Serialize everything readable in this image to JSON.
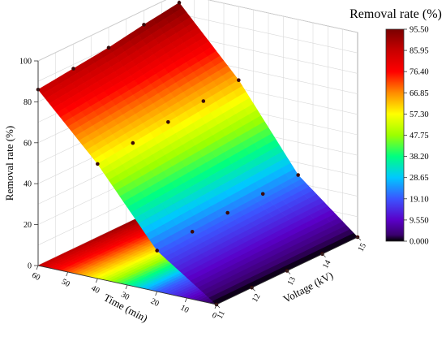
{
  "chart_data": {
    "type": "surface3d",
    "title": "",
    "x_axis": {
      "label": "Voltage (kV)",
      "ticks": [
        "11",
        "12",
        "13",
        "14",
        "15"
      ],
      "range": [
        11,
        15
      ]
    },
    "y_axis": {
      "label": "Time (min)",
      "ticks": [
        "0",
        "10",
        "20",
        "30",
        "40",
        "50",
        "60"
      ],
      "range": [
        0,
        60
      ]
    },
    "z_axis": {
      "label": "Removal rate (%)",
      "ticks": [
        "0",
        "20",
        "40",
        "60",
        "80",
        "100"
      ],
      "range": [
        0,
        100
      ]
    },
    "voltage": [
      11,
      12,
      13,
      14,
      15
    ],
    "time": [
      0,
      20,
      40,
      60
    ],
    "removal_rate": [
      [
        0,
        0,
        0,
        0,
        0
      ],
      [
        20,
        21,
        22,
        23,
        24
      ],
      [
        56,
        58,
        60,
        62,
        64
      ],
      [
        86,
        88,
        90,
        93,
        95.5
      ]
    ],
    "colorbar": {
      "title": "Removal rate (%)",
      "ticks": [
        "0.000",
        "9.550",
        "19.10",
        "28.65",
        "38.20",
        "47.75",
        "57.30",
        "66.85",
        "76.40",
        "85.95",
        "95.50"
      ],
      "range": [
        0,
        95.5
      ],
      "colors": [
        "#000000",
        "#5a00c8",
        "#3b55ff",
        "#00c8ff",
        "#00ff80",
        "#9cff00",
        "#ffff00",
        "#ff8c00",
        "#ff0000",
        "#c80000",
        "#7a0000"
      ]
    },
    "grid": true
  }
}
